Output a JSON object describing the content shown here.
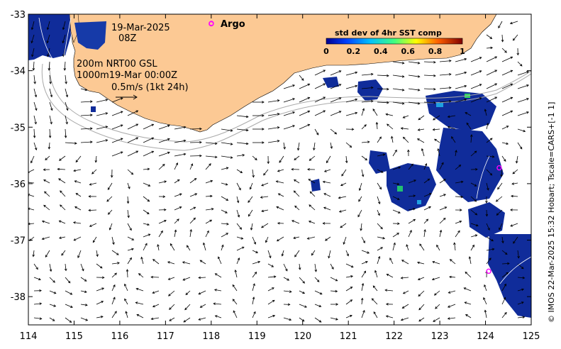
{
  "map": {
    "date_line": "19-Mar-2025",
    "time_line": "08Z",
    "isobath_line1": "200m  NRT00 GSL",
    "isobath_line2": "1000m19-Mar 00:00Z",
    "scale_label": "0.5m/s (1kt 24h)",
    "legend_argo_label": "Argo",
    "colorbar_title": "std dev of 4hr SST comp",
    "colorbar_ticks": [
      "0",
      "0.2",
      "0.4",
      "0.6",
      "0.8",
      "1"
    ],
    "credit": "© IMOS 22-Mar-2025 15:32 Hobart; Tscale=CARS+[-1 1]",
    "x_ticks": [
      "114",
      "115",
      "116",
      "117",
      "118",
      "119",
      "120",
      "121",
      "122",
      "123",
      "124",
      "125"
    ],
    "y_ticks": [
      "-33",
      "-34",
      "-35",
      "-36",
      "-37",
      "-38"
    ],
    "lon_range": [
      114,
      125
    ],
    "lat_range": [
      -38.5,
      -33
    ],
    "colors": {
      "land": "#fcc994",
      "argo": "#ff00ff",
      "arrows": "#000000",
      "isobath": "#aaaaaa"
    },
    "argo_floats": [
      {
        "lon": 118.0,
        "lat": -33.17
      },
      {
        "lon": 124.3,
        "lat": -35.72
      },
      {
        "lon": 124.07,
        "lat": -37.55
      }
    ]
  }
}
